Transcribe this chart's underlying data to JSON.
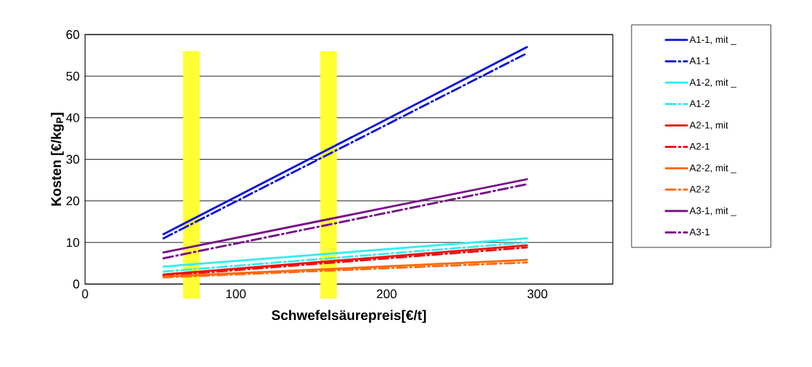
{
  "chart_data": {
    "type": "line",
    "xlabel": "Schwefelsäurepreis[€/t]",
    "ylabel": "Kosten [€/kg$_{P}$]",
    "xlim": [
      0,
      350
    ],
    "ylim": [
      0,
      60
    ],
    "xticks": [
      0,
      100,
      200,
      300
    ],
    "yticks": [
      0,
      10,
      20,
      30,
      40,
      50,
      60
    ],
    "grid": "y",
    "legend": "right",
    "marker": "none",
    "bands": [
      {
        "axis": "x",
        "from": 65,
        "to": 76,
        "color": "#ffff33"
      },
      {
        "axis": "x",
        "from": 156,
        "to": 167,
        "color": "#ffff33"
      }
    ],
    "x": [
      52,
      293
    ],
    "series": [
      {
        "name": "A1-1, mit _",
        "color": "#0a14d8",
        "line_style": "solid",
        "values": [
          12,
          57
        ]
      },
      {
        "name": "A1-1",
        "color": "#0a14d8",
        "line_style": "dashed",
        "values": [
          11,
          55.5
        ]
      },
      {
        "name": "A1-2, mit _",
        "color": "#33eeee",
        "line_style": "solid",
        "values": [
          4.2,
          11
        ]
      },
      {
        "name": "A1-2",
        "color": "#33eeee",
        "line_style": "dashed",
        "values": [
          3,
          10
        ]
      },
      {
        "name": "A2-1, mit",
        "color": "#ee1111",
        "line_style": "solid",
        "values": [
          2.3,
          9.3
        ]
      },
      {
        "name": "A2-1",
        "color": "#ee1111",
        "line_style": "dashed",
        "values": [
          2,
          8.8
        ]
      },
      {
        "name": "A2-2, mit _",
        "color": "#ff6a10",
        "line_style": "solid",
        "values": [
          1.8,
          5.8
        ]
      },
      {
        "name": "A2-2",
        "color": "#ff6a10",
        "line_style": "dashed",
        "values": [
          1.6,
          5.2
        ]
      },
      {
        "name": "A3-1, mit _",
        "color": "#770f88",
        "line_style": "solid",
        "values": [
          7.6,
          25.2
        ]
      },
      {
        "name": "A3-1",
        "color": "#770f88",
        "line_style": "dashed",
        "values": [
          6.2,
          24
        ]
      }
    ]
  }
}
